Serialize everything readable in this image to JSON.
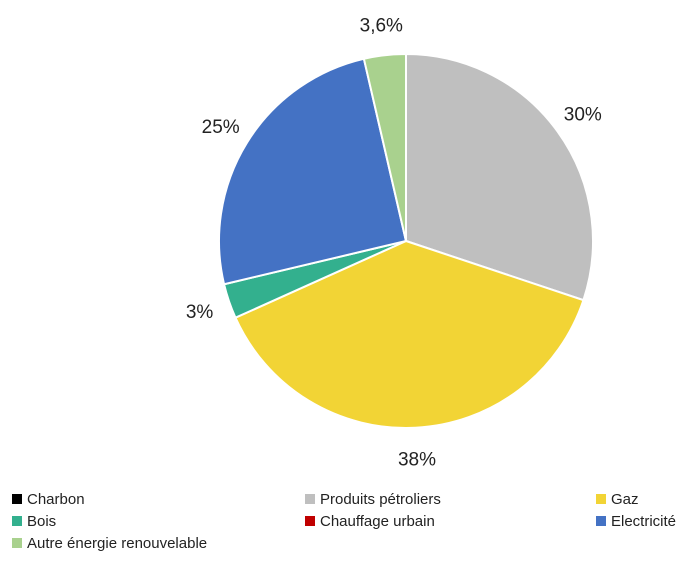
{
  "chart_data": {
    "type": "pie",
    "title": "",
    "slices": [
      {
        "name": "Charbon",
        "value": 0,
        "label": "",
        "color": "#000000"
      },
      {
        "name": "Produits pétroliers",
        "value": 30,
        "label": "30%",
        "color": "#bfbfbf"
      },
      {
        "name": "Gaz",
        "value": 38,
        "label": "38%",
        "color": "#f2d435"
      },
      {
        "name": "Bois",
        "value": 3,
        "label": "3%",
        "color": "#33b08e"
      },
      {
        "name": "Chauffage urbain",
        "value": 0,
        "label": "",
        "color": "#c00000"
      },
      {
        "name": "Electricité",
        "value": 25,
        "label": "25%",
        "color": "#4472c4"
      },
      {
        "name": "Autre énergie renouvelable",
        "value": 3.6,
        "label": "3,6%",
        "color": "#a9d18e"
      }
    ],
    "legend_position": "bottom"
  }
}
